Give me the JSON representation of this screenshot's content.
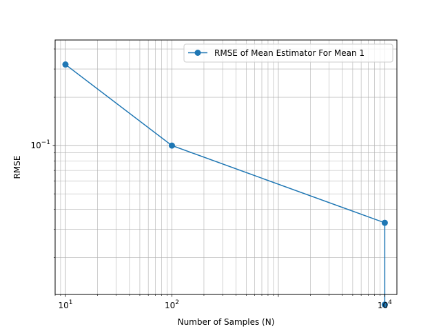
{
  "chart_data": {
    "type": "line",
    "xlabel": "Number of Samples (N)",
    "ylabel": "RMSE",
    "x_scale": "log",
    "y_scale": "log",
    "xlim": [
      8,
      13000
    ],
    "ylim": [
      0.0118,
      0.455
    ],
    "x_major_ticks": [
      {
        "value": 10,
        "base": "10",
        "exp": "1"
      },
      {
        "value": 100,
        "base": "10",
        "exp": "2"
      },
      {
        "value": 10000,
        "base": "10",
        "exp": "4"
      }
    ],
    "y_major_ticks": [
      {
        "value": 0.1,
        "base": "10",
        "exp": "−1"
      }
    ],
    "grid": "major and minor",
    "legend_position": "top-right",
    "series": [
      {
        "name": "RMSE of Mean Estimator For Mean 1",
        "color": "#1f77b4",
        "marker": "circle",
        "x": [
          10,
          100,
          10000,
          10000
        ],
        "y": [
          0.32,
          0.1,
          0.033,
          0.0102
        ]
      }
    ]
  }
}
